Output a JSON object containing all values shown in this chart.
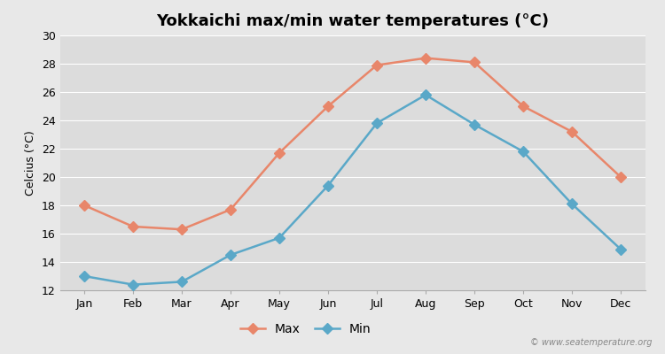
{
  "title": "Yokkaichi max/min water temperatures (°C)",
  "ylabel": "Celcius (°C)",
  "months": [
    "Jan",
    "Feb",
    "Mar",
    "Apr",
    "May",
    "Jun",
    "Jul",
    "Aug",
    "Sep",
    "Oct",
    "Nov",
    "Dec"
  ],
  "max_temps": [
    18.0,
    16.5,
    16.3,
    17.7,
    21.7,
    25.0,
    27.9,
    28.4,
    28.1,
    25.0,
    23.2,
    20.0
  ],
  "min_temps": [
    13.0,
    12.4,
    12.6,
    14.5,
    15.7,
    19.4,
    23.8,
    25.8,
    23.7,
    21.8,
    18.1,
    14.9
  ],
  "max_color": "#e8866a",
  "min_color": "#5aa8c8",
  "bg_color": "#e8e8e8",
  "plot_bg_color": "#dcdcdc",
  "ylim": [
    12,
    30
  ],
  "yticks": [
    12,
    14,
    16,
    18,
    20,
    22,
    24,
    26,
    28,
    30
  ],
  "grid_color": "#ffffff",
  "marker_size": 6,
  "line_width": 1.8,
  "watermark": "© www.seatemperature.org",
  "title_fontsize": 13,
  "axis_fontsize": 9,
  "legend_fontsize": 10
}
